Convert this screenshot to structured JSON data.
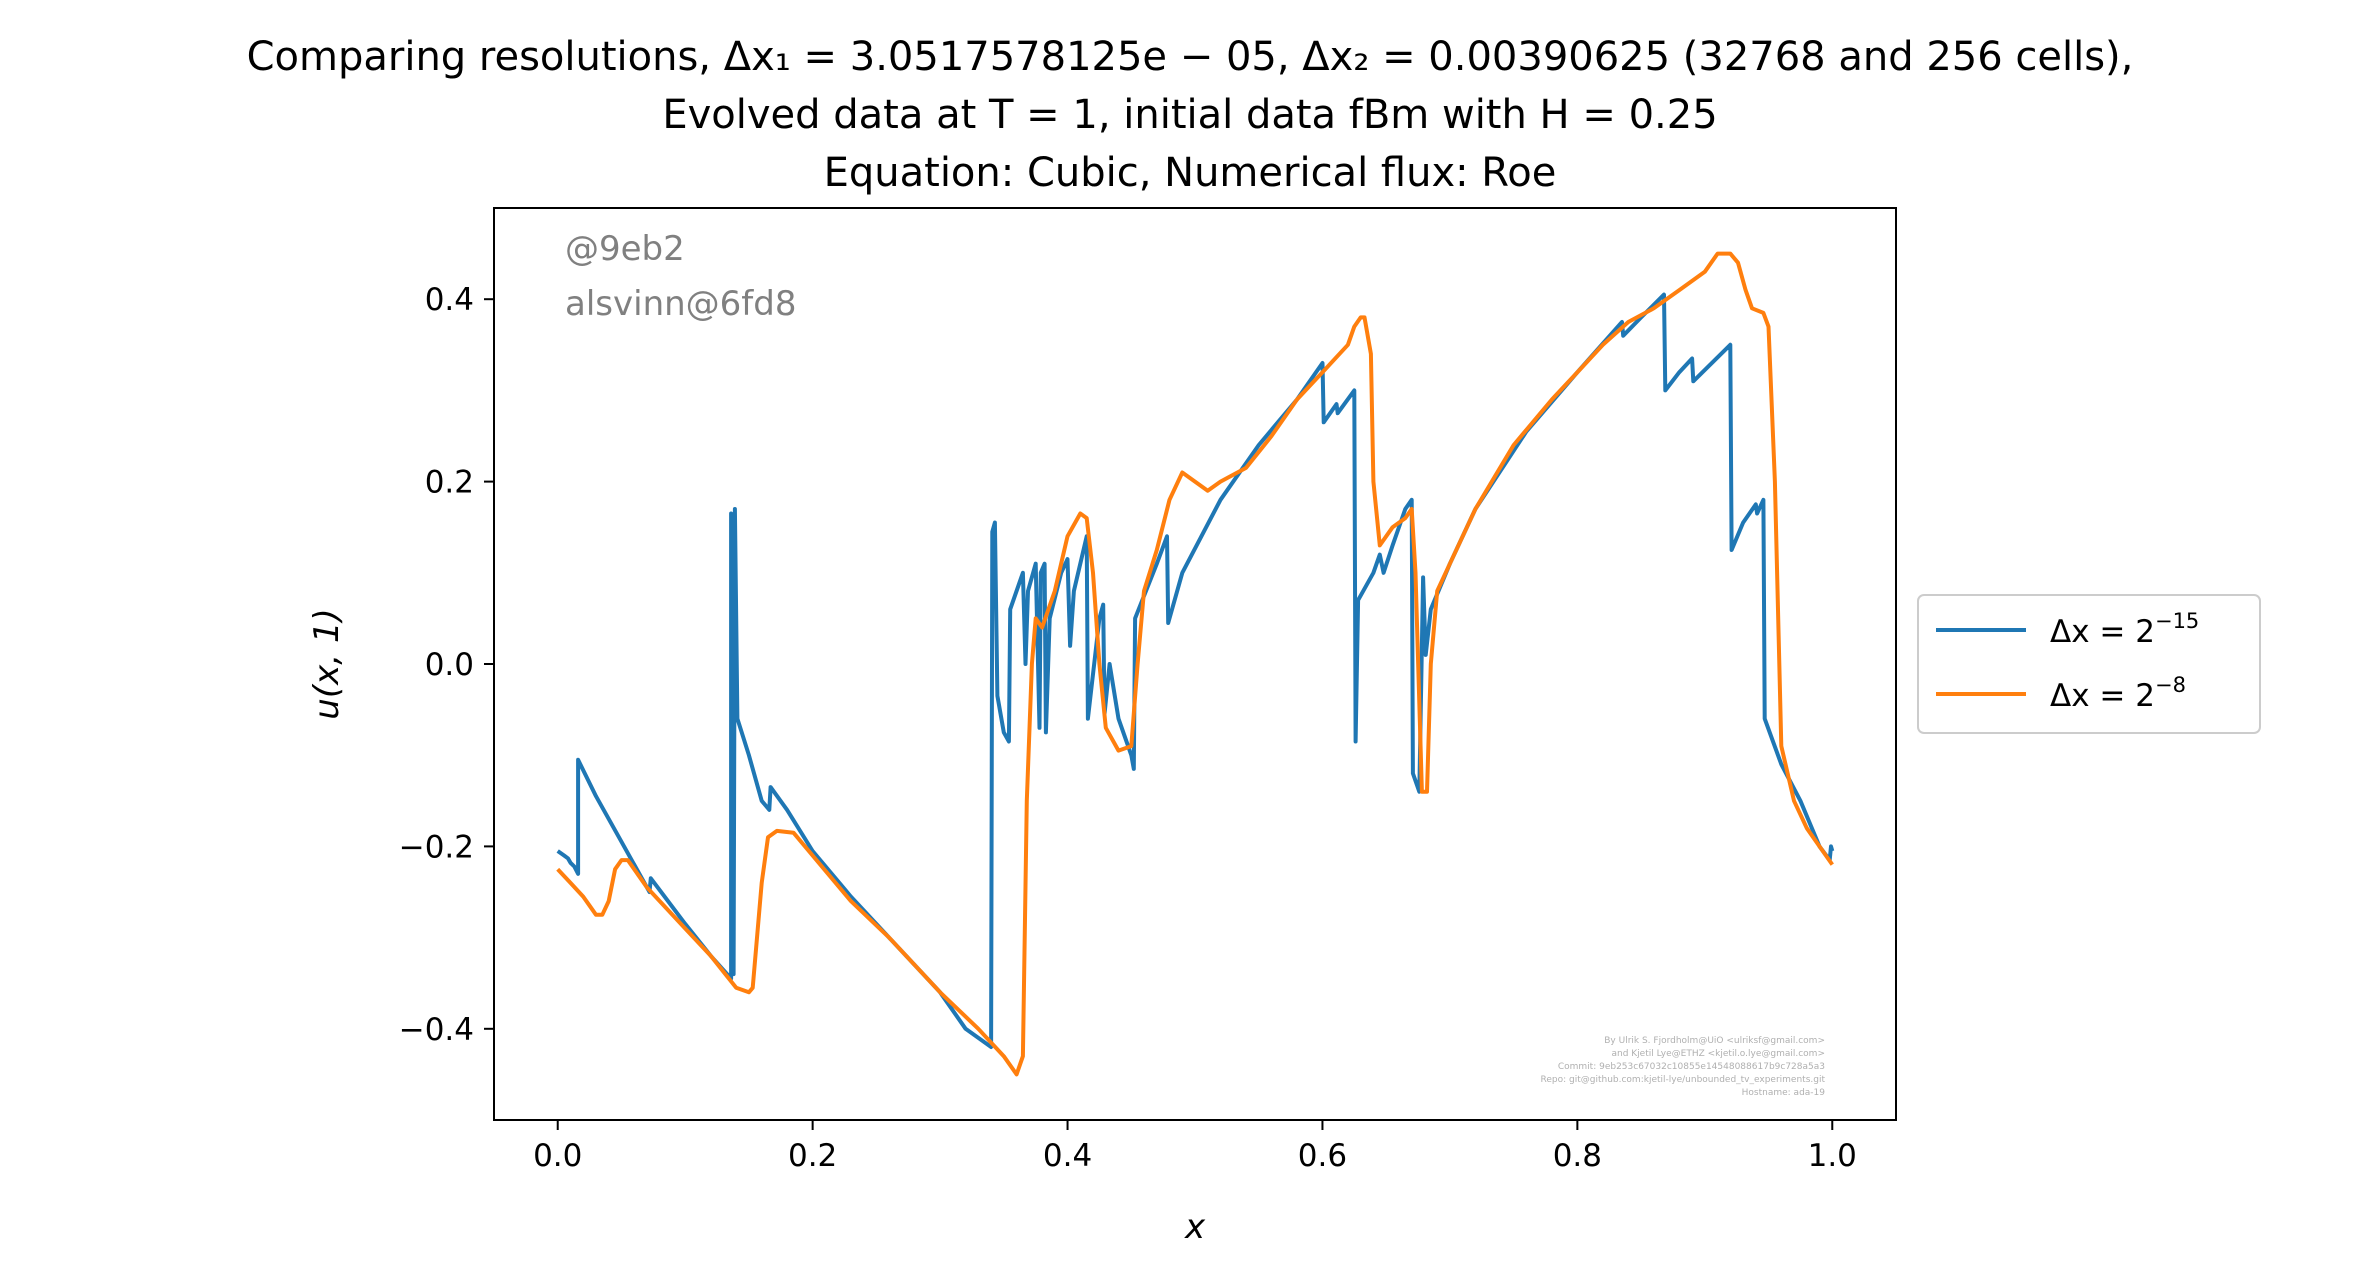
{
  "chart_data": {
    "type": "line",
    "title_lines": [
      "Comparing resolutions, Δx₁ = 3.0517578125e − 05, Δx₂ = 0.00390625 (32768 and 256 cells),",
      "Evolved data at T = 1, initial data fBm with H = 0.25",
      "Equation: Cubic, Numerical flux: Roe"
    ],
    "xlabel": "x",
    "ylabel": "u(x, 1)",
    "xlim": [
      -0.05,
      1.05
    ],
    "ylim": [
      -0.5,
      0.5
    ],
    "x_ticks": [
      0.0,
      0.2,
      0.4,
      0.6,
      0.8,
      1.0
    ],
    "x_tick_labels": [
      "0.0",
      "0.2",
      "0.4",
      "0.6",
      "0.8",
      "1.0"
    ],
    "y_ticks": [
      -0.4,
      -0.2,
      0.0,
      0.2,
      0.4
    ],
    "y_tick_labels": [
      "−0.4",
      "−0.2",
      "0.0",
      "0.2",
      "0.4"
    ],
    "grid": false,
    "legend_position": "right-outside",
    "watermark": [
      "@9eb2",
      "alsvinn@6fd8"
    ],
    "credits": [
      "By Ulrik S. Fjordholm@UiO <ulriksf@gmail.com>",
      "and Kjetil Lye@ETHZ <kjetil.o.lye@gmail.com>",
      "Commit: 9eb253c67032c10855e14548088617b9c728a5a3",
      "Repo: git@github.com:kjetil-lye/unbounded_tv_experiments.git",
      "Hostname: ada-19"
    ],
    "series": [
      {
        "name": "Δx = 2⁻¹⁵",
        "label_base": "Δx = 2",
        "label_exp": "−15",
        "color": "#1f77b4",
        "points": [
          [
            0.0,
            -0.205
          ],
          [
            0.005,
            -0.21
          ],
          [
            0.008,
            -0.213
          ],
          [
            0.01,
            -0.218
          ],
          [
            0.013,
            -0.222
          ],
          [
            0.016,
            -0.23
          ],
          [
            0.016,
            -0.105
          ],
          [
            0.03,
            -0.145
          ],
          [
            0.05,
            -0.195
          ],
          [
            0.07,
            -0.245
          ],
          [
            0.072,
            -0.25
          ],
          [
            0.073,
            -0.235
          ],
          [
            0.1,
            -0.285
          ],
          [
            0.12,
            -0.32
          ],
          [
            0.136,
            -0.345
          ],
          [
            0.136,
            0.165
          ],
          [
            0.138,
            -0.34
          ],
          [
            0.139,
            0.17
          ],
          [
            0.141,
            -0.06
          ],
          [
            0.15,
            -0.1
          ],
          [
            0.16,
            -0.15
          ],
          [
            0.166,
            -0.16
          ],
          [
            0.167,
            -0.135
          ],
          [
            0.18,
            -0.16
          ],
          [
            0.2,
            -0.205
          ],
          [
            0.23,
            -0.255
          ],
          [
            0.26,
            -0.3
          ],
          [
            0.3,
            -0.36
          ],
          [
            0.32,
            -0.4
          ],
          [
            0.34,
            -0.42
          ],
          [
            0.341,
            0.145
          ],
          [
            0.343,
            0.155
          ],
          [
            0.345,
            -0.035
          ],
          [
            0.35,
            -0.075
          ],
          [
            0.354,
            -0.085
          ],
          [
            0.355,
            0.06
          ],
          [
            0.365,
            0.1
          ],
          [
            0.367,
            0.0
          ],
          [
            0.369,
            0.08
          ],
          [
            0.375,
            0.11
          ],
          [
            0.378,
            -0.07
          ],
          [
            0.379,
            0.1
          ],
          [
            0.382,
            0.11
          ],
          [
            0.383,
            -0.075
          ],
          [
            0.386,
            0.05
          ],
          [
            0.395,
            0.1
          ],
          [
            0.4,
            0.115
          ],
          [
            0.402,
            0.02
          ],
          [
            0.405,
            0.08
          ],
          [
            0.415,
            0.14
          ],
          [
            0.416,
            -0.06
          ],
          [
            0.425,
            0.05
          ],
          [
            0.428,
            0.065
          ],
          [
            0.429,
            -0.055
          ],
          [
            0.433,
            0.0
          ],
          [
            0.44,
            -0.06
          ],
          [
            0.45,
            -0.1
          ],
          [
            0.452,
            -0.115
          ],
          [
            0.453,
            0.05
          ],
          [
            0.47,
            0.11
          ],
          [
            0.478,
            0.14
          ],
          [
            0.479,
            0.045
          ],
          [
            0.49,
            0.1
          ],
          [
            0.52,
            0.18
          ],
          [
            0.55,
            0.24
          ],
          [
            0.58,
            0.29
          ],
          [
            0.6,
            0.33
          ],
          [
            0.601,
            0.265
          ],
          [
            0.611,
            0.285
          ],
          [
            0.612,
            0.275
          ],
          [
            0.625,
            0.3
          ],
          [
            0.626,
            -0.085
          ],
          [
            0.628,
            0.07
          ],
          [
            0.64,
            0.1
          ],
          [
            0.645,
            0.12
          ],
          [
            0.648,
            0.1
          ],
          [
            0.655,
            0.13
          ],
          [
            0.665,
            0.17
          ],
          [
            0.67,
            0.18
          ],
          [
            0.671,
            -0.12
          ],
          [
            0.676,
            -0.14
          ],
          [
            0.679,
            0.095
          ],
          [
            0.681,
            0.01
          ],
          [
            0.685,
            0.06
          ],
          [
            0.7,
            0.11
          ],
          [
            0.72,
            0.17
          ],
          [
            0.76,
            0.255
          ],
          [
            0.8,
            0.32
          ],
          [
            0.835,
            0.375
          ],
          [
            0.836,
            0.36
          ],
          [
            0.85,
            0.38
          ],
          [
            0.868,
            0.405
          ],
          [
            0.869,
            0.3
          ],
          [
            0.88,
            0.32
          ],
          [
            0.89,
            0.335
          ],
          [
            0.891,
            0.31
          ],
          [
            0.92,
            0.35
          ],
          [
            0.921,
            0.125
          ],
          [
            0.93,
            0.155
          ],
          [
            0.94,
            0.175
          ],
          [
            0.941,
            0.165
          ],
          [
            0.946,
            0.18
          ],
          [
            0.947,
            -0.06
          ],
          [
            0.96,
            -0.11
          ],
          [
            0.975,
            -0.15
          ],
          [
            0.99,
            -0.2
          ],
          [
            0.998,
            -0.215
          ],
          [
            0.999,
            -0.2
          ],
          [
            1.0,
            -0.205
          ]
        ]
      },
      {
        "name": "Δx = 2⁻⁸",
        "label_base": "Δx = 2",
        "label_exp": "−8",
        "color": "#ff7f0e",
        "points": [
          [
            0.0,
            -0.225
          ],
          [
            0.01,
            -0.24
          ],
          [
            0.02,
            -0.255
          ],
          [
            0.025,
            -0.265
          ],
          [
            0.03,
            -0.275
          ],
          [
            0.035,
            -0.275
          ],
          [
            0.04,
            -0.26
          ],
          [
            0.045,
            -0.225
          ],
          [
            0.05,
            -0.215
          ],
          [
            0.055,
            -0.215
          ],
          [
            0.06,
            -0.225
          ],
          [
            0.07,
            -0.245
          ],
          [
            0.08,
            -0.26
          ],
          [
            0.1,
            -0.29
          ],
          [
            0.12,
            -0.32
          ],
          [
            0.14,
            -0.355
          ],
          [
            0.15,
            -0.36
          ],
          [
            0.153,
            -0.355
          ],
          [
            0.16,
            -0.24
          ],
          [
            0.165,
            -0.19
          ],
          [
            0.172,
            -0.183
          ],
          [
            0.185,
            -0.185
          ],
          [
            0.2,
            -0.21
          ],
          [
            0.23,
            -0.26
          ],
          [
            0.26,
            -0.3
          ],
          [
            0.3,
            -0.36
          ],
          [
            0.33,
            -0.4
          ],
          [
            0.35,
            -0.43
          ],
          [
            0.36,
            -0.45
          ],
          [
            0.365,
            -0.43
          ],
          [
            0.368,
            -0.15
          ],
          [
            0.372,
            0.0
          ],
          [
            0.375,
            0.05
          ],
          [
            0.38,
            0.04
          ],
          [
            0.39,
            0.08
          ],
          [
            0.4,
            0.14
          ],
          [
            0.41,
            0.165
          ],
          [
            0.415,
            0.16
          ],
          [
            0.42,
            0.1
          ],
          [
            0.425,
            0.0
          ],
          [
            0.43,
            -0.07
          ],
          [
            0.44,
            -0.095
          ],
          [
            0.45,
            -0.09
          ],
          [
            0.455,
            0.0
          ],
          [
            0.46,
            0.08
          ],
          [
            0.47,
            0.125
          ],
          [
            0.48,
            0.18
          ],
          [
            0.49,
            0.21
          ],
          [
            0.5,
            0.2
          ],
          [
            0.51,
            0.19
          ],
          [
            0.52,
            0.2
          ],
          [
            0.54,
            0.215
          ],
          [
            0.56,
            0.25
          ],
          [
            0.58,
            0.29
          ],
          [
            0.6,
            0.32
          ],
          [
            0.62,
            0.35
          ],
          [
            0.625,
            0.37
          ],
          [
            0.63,
            0.38
          ],
          [
            0.633,
            0.38
          ],
          [
            0.638,
            0.34
          ],
          [
            0.64,
            0.2
          ],
          [
            0.645,
            0.13
          ],
          [
            0.655,
            0.15
          ],
          [
            0.665,
            0.16
          ],
          [
            0.67,
            0.17
          ],
          [
            0.673,
            0.1
          ],
          [
            0.678,
            -0.14
          ],
          [
            0.682,
            -0.14
          ],
          [
            0.685,
            0.0
          ],
          [
            0.69,
            0.08
          ],
          [
            0.7,
            0.11
          ],
          [
            0.72,
            0.17
          ],
          [
            0.75,
            0.24
          ],
          [
            0.78,
            0.29
          ],
          [
            0.8,
            0.32
          ],
          [
            0.82,
            0.35
          ],
          [
            0.84,
            0.375
          ],
          [
            0.86,
            0.39
          ],
          [
            0.88,
            0.41
          ],
          [
            0.9,
            0.43
          ],
          [
            0.91,
            0.45
          ],
          [
            0.92,
            0.45
          ],
          [
            0.926,
            0.44
          ],
          [
            0.932,
            0.41
          ],
          [
            0.937,
            0.39
          ],
          [
            0.946,
            0.385
          ],
          [
            0.95,
            0.37
          ],
          [
            0.955,
            0.2
          ],
          [
            0.96,
            -0.09
          ],
          [
            0.97,
            -0.15
          ],
          [
            0.98,
            -0.18
          ],
          [
            0.99,
            -0.2
          ],
          [
            1.0,
            -0.22
          ]
        ]
      }
    ]
  }
}
